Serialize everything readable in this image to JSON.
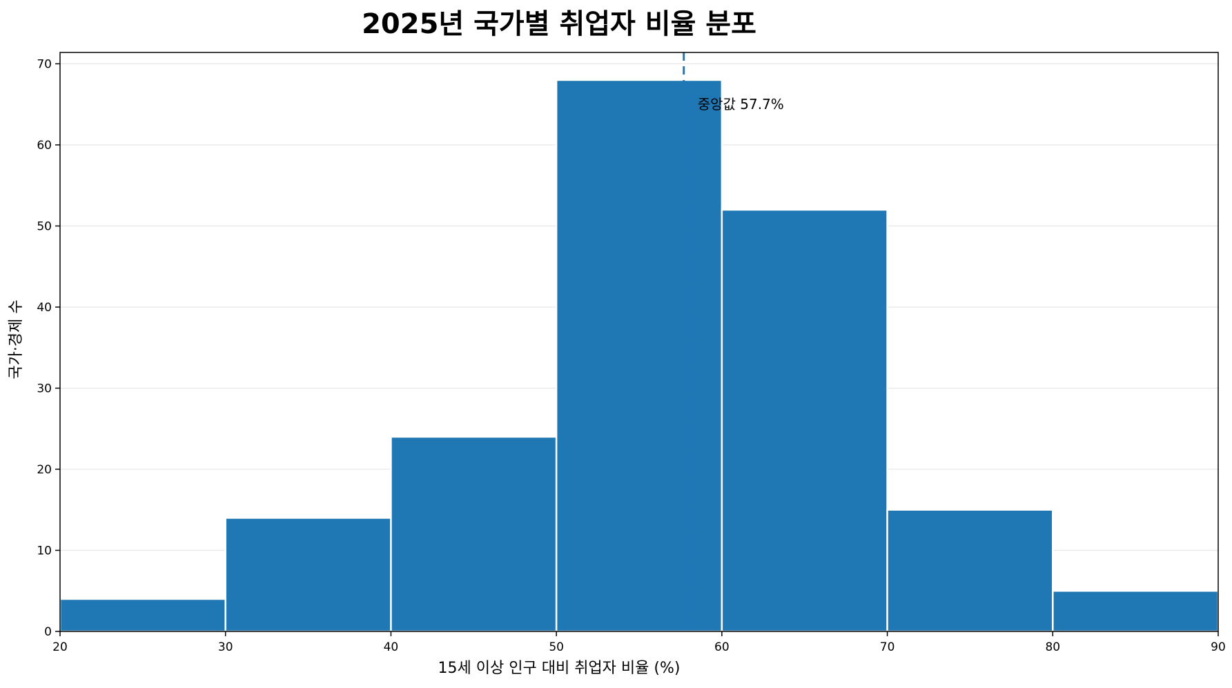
{
  "chart_data": {
    "type": "bar",
    "title": "2025년 국가별 취업자 비율 분포",
    "xlabel": "15세 이상 인구 대비 취업자 비율 (%)",
    "ylabel": "국가·경제 수",
    "bin_edges": [
      20,
      30,
      40,
      50,
      60,
      70,
      80,
      90
    ],
    "values": [
      4,
      14,
      24,
      68,
      52,
      15,
      5
    ],
    "xlim": [
      20,
      90
    ],
    "ylim": [
      0,
      71.4
    ],
    "xticks": [
      20,
      30,
      40,
      50,
      60,
      70,
      80,
      90
    ],
    "yticks": [
      0,
      10,
      20,
      30,
      40,
      50,
      60,
      70
    ],
    "grid": "y-only",
    "bar_color": "#1f77b4",
    "median": {
      "value": 57.7,
      "label": "중앙값 57.7%",
      "line_color": "#1f77b4",
      "line_style": "dashed"
    }
  }
}
